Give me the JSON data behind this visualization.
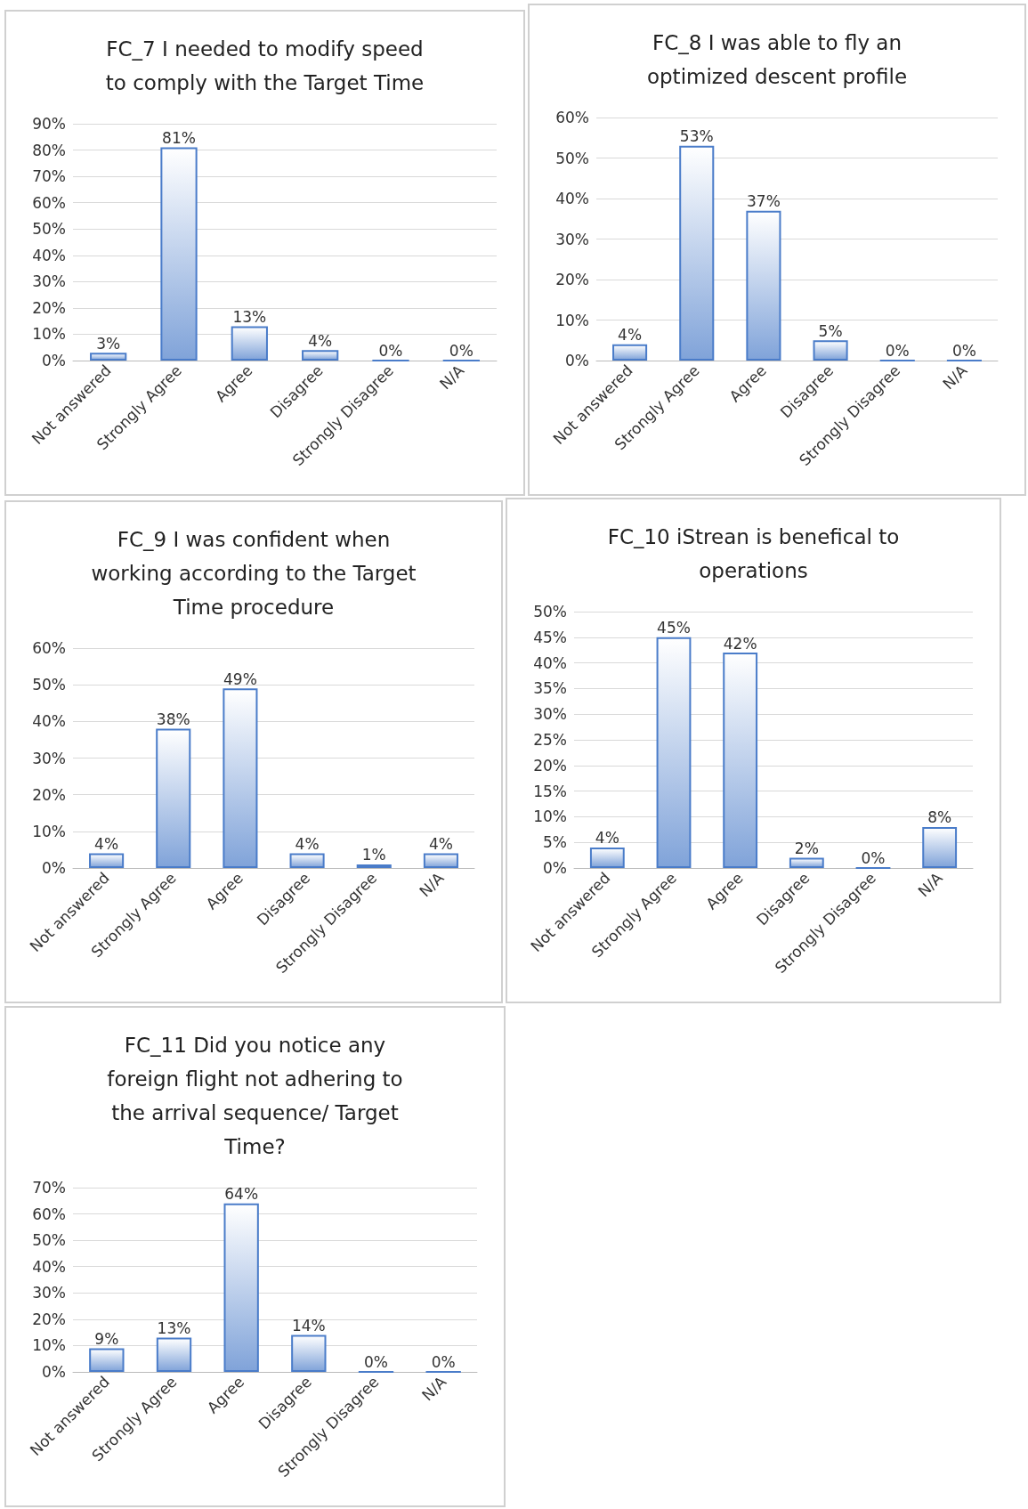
{
  "chart_data": [
    {
      "type": "bar",
      "title": "FC_7 I needed to modify speed\nto comply with the Target Time",
      "categories": [
        "Not answered",
        "Strongly Agree",
        "Agree",
        "Disagree",
        "Strongly Disagree",
        "N/A"
      ],
      "values": [
        3,
        81,
        13,
        4,
        0,
        0
      ],
      "value_labels": [
        "3%",
        "81%",
        "13%",
        "4%",
        "0%",
        "0%"
      ],
      "color": "#4a7cc9",
      "ylim": [
        0,
        90
      ],
      "yticks": [
        {
          "value": 0,
          "label": "0%"
        },
        {
          "value": 10,
          "label": "10%"
        },
        {
          "value": 20,
          "label": "20%"
        },
        {
          "value": 30,
          "label": "30%"
        },
        {
          "value": 40,
          "label": "40%"
        },
        {
          "value": 50,
          "label": "50%"
        },
        {
          "value": 60,
          "label": "60%"
        },
        {
          "value": 70,
          "label": "70%"
        },
        {
          "value": 80,
          "label": "80%"
        },
        {
          "value": 90,
          "label": "90%"
        }
      ],
      "grid": "y"
    },
    {
      "type": "bar",
      "title": "FC_8 I was able to fly an\noptimized descent profile",
      "categories": [
        "Not answered",
        "Strongly Agree",
        "Agree",
        "Disagree",
        "Strongly Disagree",
        "N/A"
      ],
      "values": [
        4,
        53,
        37,
        5,
        0,
        0
      ],
      "value_labels": [
        "4%",
        "53%",
        "37%",
        "5%",
        "0%",
        "0%"
      ],
      "color": "#4a7cc9",
      "ylim": [
        0,
        60
      ],
      "yticks": [
        {
          "value": 0,
          "label": "0%"
        },
        {
          "value": 10,
          "label": "10%"
        },
        {
          "value": 20,
          "label": "20%"
        },
        {
          "value": 30,
          "label": "30%"
        },
        {
          "value": 40,
          "label": "40%"
        },
        {
          "value": 50,
          "label": "50%"
        },
        {
          "value": 60,
          "label": "60%"
        }
      ],
      "grid": "y"
    },
    {
      "type": "bar",
      "title": "FC_9 I was confident when\nworking according to the Target\nTime procedure",
      "categories": [
        "Not answered",
        "Strongly Agree",
        "Agree",
        "Disagree",
        "Strongly Disagree",
        "N/A"
      ],
      "values": [
        4,
        38,
        49,
        4,
        1,
        4
      ],
      "value_labels": [
        "4%",
        "38%",
        "49%",
        "4%",
        "1%",
        "4%"
      ],
      "color": "#4a7cc9",
      "ylim": [
        0,
        60
      ],
      "yticks": [
        {
          "value": 0,
          "label": "0%"
        },
        {
          "value": 10,
          "label": "10%"
        },
        {
          "value": 20,
          "label": "20%"
        },
        {
          "value": 30,
          "label": "30%"
        },
        {
          "value": 40,
          "label": "40%"
        },
        {
          "value": 50,
          "label": "50%"
        },
        {
          "value": 60,
          "label": "60%"
        }
      ],
      "grid": "y"
    },
    {
      "type": "bar",
      "title": "FC_10 iStrean is benefical to\noperations",
      "categories": [
        "Not answered",
        "Strongly Agree",
        "Agree",
        "Disagree",
        "Strongly Disagree",
        "N/A"
      ],
      "values": [
        4,
        45,
        42,
        2,
        0,
        8
      ],
      "value_labels": [
        "4%",
        "45%",
        "42%",
        "2%",
        "0%",
        "8%"
      ],
      "color": "#4a7cc9",
      "ylim": [
        0,
        50
      ],
      "yticks": [
        {
          "value": 0,
          "label": "0%"
        },
        {
          "value": 5,
          "label": "5%"
        },
        {
          "value": 10,
          "label": "10%"
        },
        {
          "value": 15,
          "label": "15%"
        },
        {
          "value": 20,
          "label": "20%"
        },
        {
          "value": 25,
          "label": "25%"
        },
        {
          "value": 30,
          "label": "30%"
        },
        {
          "value": 35,
          "label": "35%"
        },
        {
          "value": 40,
          "label": "40%"
        },
        {
          "value": 45,
          "label": "45%"
        },
        {
          "value": 50,
          "label": "50%"
        }
      ],
      "grid": "y"
    },
    {
      "type": "bar",
      "title": "FC_11 Did you notice any\nforeign flight not adhering to\nthe arrival sequence/ Target\nTime?",
      "categories": [
        "Not answered",
        "Strongly Agree",
        "Agree",
        "Disagree",
        "Strongly Disagree",
        "N/A"
      ],
      "values": [
        9,
        13,
        64,
        14,
        0,
        0
      ],
      "value_labels": [
        "9%",
        "13%",
        "64%",
        "14%",
        "0%",
        "0%"
      ],
      "color": "#4a7cc9",
      "ylim": [
        0,
        70
      ],
      "yticks": [
        {
          "value": 0,
          "label": "0%"
        },
        {
          "value": 10,
          "label": "10%"
        },
        {
          "value": 20,
          "label": "20%"
        },
        {
          "value": 30,
          "label": "30%"
        },
        {
          "value": 40,
          "label": "40%"
        },
        {
          "value": 50,
          "label": "50%"
        },
        {
          "value": 60,
          "label": "60%"
        },
        {
          "value": 70,
          "label": "70%"
        }
      ],
      "grid": "y"
    }
  ]
}
